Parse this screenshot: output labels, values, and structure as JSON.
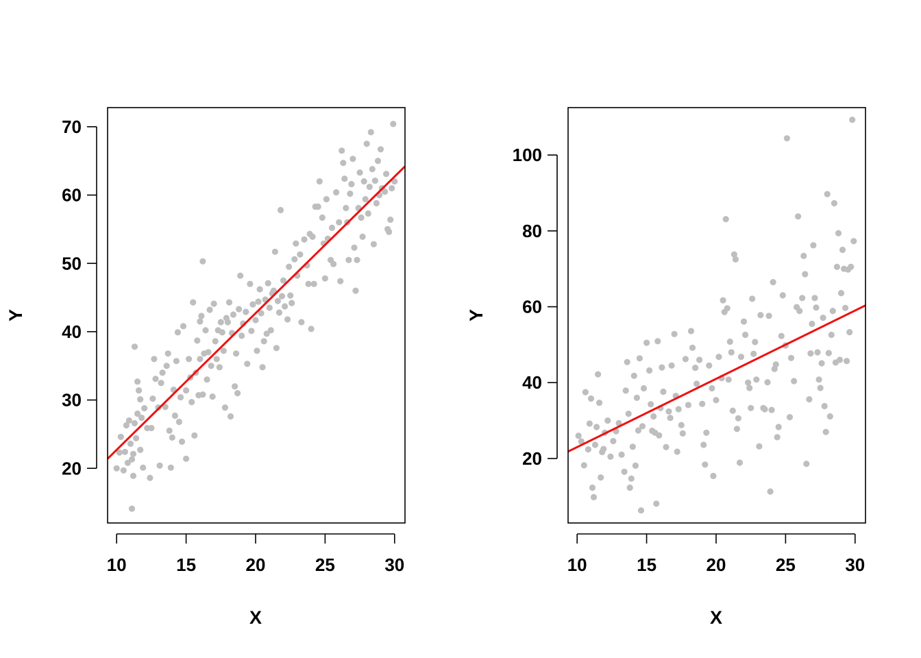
{
  "colors": {
    "points": "#BEBEBE",
    "fit_line": "#EE1111",
    "axis": "#000000",
    "background": "#FFFFFF"
  },
  "chart_data": [
    {
      "type": "scatter",
      "title": "",
      "xlabel": "X",
      "ylabel": "Y",
      "xlim": [
        9.35,
        30.75
      ],
      "ylim": [
        12.0,
        72.8
      ],
      "xticks": [
        10,
        15,
        20,
        25,
        30
      ],
      "yticks": [
        20,
        30,
        40,
        50,
        60,
        70
      ],
      "grid": false,
      "legend": "none",
      "points": [
        [
          10.0,
          20.0
        ],
        [
          10.2,
          22.3
        ],
        [
          10.3,
          24.6
        ],
        [
          10.5,
          19.7
        ],
        [
          10.6,
          22.4
        ],
        [
          10.7,
          26.3
        ],
        [
          10.8,
          20.8
        ],
        [
          10.9,
          27.0
        ],
        [
          11.0,
          23.6
        ],
        [
          11.1,
          21.3
        ],
        [
          11.2,
          18.9
        ],
        [
          11.2,
          22.1
        ],
        [
          11.3,
          26.6
        ],
        [
          11.4,
          24.4
        ],
        [
          11.5,
          28.0
        ],
        [
          11.6,
          31.4
        ],
        [
          11.7,
          30.1
        ],
        [
          11.8,
          27.4
        ],
        [
          11.3,
          37.8
        ],
        [
          11.5,
          32.7
        ],
        [
          11.1,
          14.1
        ],
        [
          11.7,
          22.7
        ],
        [
          11.9,
          20.1
        ],
        [
          12.0,
          28.8
        ],
        [
          12.2,
          25.9
        ],
        [
          12.4,
          18.6
        ],
        [
          12.5,
          25.9
        ],
        [
          12.6,
          30.2
        ],
        [
          12.7,
          36.0
        ],
        [
          12.8,
          33.1
        ],
        [
          13.0,
          28.9
        ],
        [
          13.1,
          20.4
        ],
        [
          13.2,
          32.5
        ],
        [
          13.3,
          34.0
        ],
        [
          13.5,
          29.0
        ],
        [
          13.6,
          35.0
        ],
        [
          13.7,
          36.8
        ],
        [
          13.8,
          25.5
        ],
        [
          13.9,
          20.1
        ],
        [
          14.0,
          24.5
        ],
        [
          14.1,
          31.5
        ],
        [
          14.2,
          27.7
        ],
        [
          14.3,
          35.7
        ],
        [
          14.4,
          39.9
        ],
        [
          14.5,
          26.8
        ],
        [
          14.6,
          30.4
        ],
        [
          14.7,
          23.9
        ],
        [
          14.8,
          40.8
        ],
        [
          15.0,
          31.4
        ],
        [
          15.0,
          21.4
        ],
        [
          15.2,
          36.0
        ],
        [
          15.3,
          33.3
        ],
        [
          15.4,
          29.7
        ],
        [
          15.5,
          44.3
        ],
        [
          15.6,
          24.8
        ],
        [
          15.7,
          34.0
        ],
        [
          15.8,
          38.7
        ],
        [
          15.9,
          30.7
        ],
        [
          16.0,
          36.0
        ],
        [
          16.0,
          41.5
        ],
        [
          16.1,
          42.3
        ],
        [
          16.2,
          30.8
        ],
        [
          16.2,
          50.3
        ],
        [
          16.3,
          36.8
        ],
        [
          16.4,
          40.2
        ],
        [
          16.5,
          33.0
        ],
        [
          16.6,
          37.0
        ],
        [
          16.7,
          43.2
        ],
        [
          16.8,
          35.0
        ],
        [
          16.9,
          30.5
        ],
        [
          17.0,
          44.1
        ],
        [
          17.1,
          38.6
        ],
        [
          17.2,
          36.0
        ],
        [
          17.3,
          40.2
        ],
        [
          17.4,
          34.8
        ],
        [
          17.5,
          41.4
        ],
        [
          17.6,
          39.9
        ],
        [
          17.7,
          37.2
        ],
        [
          17.8,
          28.9
        ],
        [
          17.9,
          42.0
        ],
        [
          18.0,
          41.4
        ],
        [
          18.1,
          44.3
        ],
        [
          18.2,
          27.6
        ],
        [
          18.3,
          39.8
        ],
        [
          18.4,
          42.5
        ],
        [
          18.5,
          32.0
        ],
        [
          18.6,
          36.8
        ],
        [
          18.7,
          31.0
        ],
        [
          18.8,
          43.3
        ],
        [
          18.9,
          48.2
        ],
        [
          19.0,
          39.4
        ],
        [
          19.1,
          41.2
        ],
        [
          19.3,
          42.9
        ],
        [
          19.4,
          35.3
        ],
        [
          19.6,
          47.0
        ],
        [
          19.7,
          40.1
        ],
        [
          19.8,
          44.0
        ],
        [
          20.0,
          41.7
        ],
        [
          20.1,
          37.2
        ],
        [
          20.2,
          44.4
        ],
        [
          20.3,
          46.2
        ],
        [
          20.4,
          42.7
        ],
        [
          20.5,
          34.8
        ],
        [
          20.6,
          38.6
        ],
        [
          20.7,
          44.7
        ],
        [
          20.8,
          39.7
        ],
        [
          20.9,
          47.1
        ],
        [
          21.0,
          43.5
        ],
        [
          21.1,
          40.2
        ],
        [
          21.2,
          45.6
        ],
        [
          21.3,
          46.0
        ],
        [
          21.4,
          51.7
        ],
        [
          21.5,
          37.6
        ],
        [
          21.6,
          44.5
        ],
        [
          21.7,
          42.8
        ],
        [
          21.8,
          57.8
        ],
        [
          21.9,
          45.2
        ],
        [
          22.0,
          47.5
        ],
        [
          22.1,
          43.7
        ],
        [
          22.3,
          41.8
        ],
        [
          22.4,
          49.5
        ],
        [
          22.5,
          45.3
        ],
        [
          22.6,
          44.2
        ],
        [
          22.8,
          50.6
        ],
        [
          22.9,
          52.9
        ],
        [
          23.0,
          48.2
        ],
        [
          23.2,
          51.3
        ],
        [
          23.3,
          41.4
        ],
        [
          23.5,
          53.5
        ],
        [
          23.7,
          49.7
        ],
        [
          23.8,
          47.0
        ],
        [
          23.9,
          54.3
        ],
        [
          24.0,
          40.4
        ],
        [
          24.1,
          53.9
        ],
        [
          24.2,
          47.0
        ],
        [
          24.3,
          58.3
        ],
        [
          24.5,
          58.3
        ],
        [
          24.6,
          62.0
        ],
        [
          24.8,
          56.7
        ],
        [
          24.9,
          52.9
        ],
        [
          25.0,
          47.8
        ],
        [
          25.1,
          59.4
        ],
        [
          25.2,
          53.6
        ],
        [
          25.4,
          50.5
        ],
        [
          25.5,
          55.2
        ],
        [
          25.6,
          49.9
        ],
        [
          25.8,
          60.4
        ],
        [
          26.0,
          56.0
        ],
        [
          26.1,
          47.4
        ],
        [
          26.2,
          66.5
        ],
        [
          26.3,
          64.7
        ],
        [
          26.4,
          62.4
        ],
        [
          26.5,
          58.1
        ],
        [
          26.6,
          56.0
        ],
        [
          26.7,
          50.5
        ],
        [
          26.8,
          60.2
        ],
        [
          26.9,
          61.6
        ],
        [
          27.0,
          65.3
        ],
        [
          27.1,
          52.3
        ],
        [
          27.2,
          46.0
        ],
        [
          27.3,
          50.5
        ],
        [
          27.4,
          58.1
        ],
        [
          27.5,
          63.3
        ],
        [
          27.6,
          56.7
        ],
        [
          27.7,
          53.9
        ],
        [
          27.8,
          62.0
        ],
        [
          27.9,
          59.4
        ],
        [
          28.0,
          67.5
        ],
        [
          28.1,
          57.3
        ],
        [
          28.2,
          61.2
        ],
        [
          28.3,
          69.2
        ],
        [
          28.4,
          63.8
        ],
        [
          28.5,
          52.8
        ],
        [
          28.6,
          62.1
        ],
        [
          28.7,
          58.8
        ],
        [
          28.8,
          65.0
        ],
        [
          28.9,
          60.0
        ],
        [
          29.0,
          66.7
        ],
        [
          29.1,
          61.0
        ],
        [
          29.3,
          60.5
        ],
        [
          29.4,
          63.1
        ],
        [
          29.5,
          55.0
        ],
        [
          29.6,
          54.6
        ],
        [
          29.7,
          56.4
        ],
        [
          29.8,
          61.0
        ],
        [
          29.9,
          70.4
        ],
        [
          30.0,
          62.0
        ]
      ],
      "fit_line": {
        "intercept": 2.7,
        "slope": 2.0
      }
    },
    {
      "type": "scatter",
      "title": "",
      "xlabel": "X",
      "ylabel": "Y",
      "xlim": [
        9.35,
        30.75
      ],
      "ylim": [
        3.0,
        112.5
      ],
      "xticks": [
        10,
        15,
        20,
        25,
        30
      ],
      "yticks": [
        20,
        40,
        60,
        80,
        100
      ],
      "grid": false,
      "legend": "none",
      "points": [
        [
          10.1,
          26.0
        ],
        [
          10.3,
          24.5
        ],
        [
          10.5,
          18.2
        ],
        [
          10.6,
          37.5
        ],
        [
          10.8,
          22.4
        ],
        [
          10.9,
          29.2
        ],
        [
          11.0,
          35.8
        ],
        [
          11.1,
          12.3
        ],
        [
          11.2,
          9.8
        ],
        [
          11.3,
          23.6
        ],
        [
          11.4,
          28.3
        ],
        [
          11.5,
          42.2
        ],
        [
          11.6,
          34.7
        ],
        [
          11.7,
          15.0
        ],
        [
          11.8,
          21.7
        ],
        [
          11.9,
          22.5
        ],
        [
          12.0,
          26.8
        ],
        [
          12.2,
          30.0
        ],
        [
          12.4,
          20.5
        ],
        [
          12.6,
          24.6
        ],
        [
          12.8,
          27.2
        ],
        [
          13.0,
          29.3
        ],
        [
          13.2,
          21.0
        ],
        [
          13.4,
          16.5
        ],
        [
          13.5,
          37.9
        ],
        [
          13.6,
          45.4
        ],
        [
          13.7,
          31.8
        ],
        [
          13.8,
          12.3
        ],
        [
          13.9,
          14.7
        ],
        [
          14.0,
          23.1
        ],
        [
          14.1,
          41.8
        ],
        [
          14.2,
          18.1
        ],
        [
          14.3,
          36.0
        ],
        [
          14.4,
          27.4
        ],
        [
          14.5,
          46.4
        ],
        [
          14.6,
          6.3
        ],
        [
          14.7,
          28.5
        ],
        [
          14.8,
          38.5
        ],
        [
          15.0,
          50.5
        ],
        [
          15.2,
          43.2
        ],
        [
          15.3,
          34.3
        ],
        [
          15.4,
          27.3
        ],
        [
          15.5,
          31.1
        ],
        [
          15.6,
          26.8
        ],
        [
          15.7,
          8.1
        ],
        [
          15.8,
          50.9
        ],
        [
          15.9,
          26.1
        ],
        [
          16.0,
          33.3
        ],
        [
          16.1,
          44.0
        ],
        [
          16.2,
          37.6
        ],
        [
          16.4,
          23.0
        ],
        [
          16.6,
          32.4
        ],
        [
          16.7,
          30.7
        ],
        [
          16.8,
          44.5
        ],
        [
          17.0,
          52.8
        ],
        [
          17.1,
          36.5
        ],
        [
          17.2,
          21.8
        ],
        [
          17.3,
          33.0
        ],
        [
          17.5,
          28.8
        ],
        [
          17.6,
          26.6
        ],
        [
          17.8,
          46.2
        ],
        [
          18.0,
          34.1
        ],
        [
          18.2,
          53.6
        ],
        [
          18.3,
          49.2
        ],
        [
          18.5,
          43.9
        ],
        [
          18.6,
          39.7
        ],
        [
          18.8,
          46.0
        ],
        [
          19.0,
          34.4
        ],
        [
          19.1,
          23.6
        ],
        [
          19.2,
          18.4
        ],
        [
          19.3,
          26.8
        ],
        [
          19.5,
          44.5
        ],
        [
          19.7,
          38.5
        ],
        [
          19.8,
          15.4
        ],
        [
          20.0,
          35.4
        ],
        [
          20.2,
          46.8
        ],
        [
          20.4,
          41.2
        ],
        [
          20.5,
          61.7
        ],
        [
          20.6,
          58.6
        ],
        [
          20.7,
          83.1
        ],
        [
          20.8,
          59.6
        ],
        [
          20.9,
          40.8
        ],
        [
          21.0,
          50.8
        ],
        [
          21.1,
          48.0
        ],
        [
          21.2,
          32.6
        ],
        [
          21.3,
          73.8
        ],
        [
          21.4,
          72.5
        ],
        [
          21.5,
          27.8
        ],
        [
          21.6,
          30.6
        ],
        [
          21.7,
          18.9
        ],
        [
          21.8,
          46.8
        ],
        [
          22.0,
          56.1
        ],
        [
          22.1,
          52.6
        ],
        [
          22.3,
          40.0
        ],
        [
          22.4,
          38.6
        ],
        [
          22.5,
          33.3
        ],
        [
          22.6,
          62.1
        ],
        [
          22.7,
          47.6
        ],
        [
          22.8,
          50.7
        ],
        [
          22.9,
          40.8
        ],
        [
          23.1,
          23.2
        ],
        [
          23.2,
          57.8
        ],
        [
          23.4,
          33.3
        ],
        [
          23.5,
          33.0
        ],
        [
          23.7,
          40.1
        ],
        [
          23.8,
          57.6
        ],
        [
          23.9,
          11.3
        ],
        [
          24.0,
          32.8
        ],
        [
          24.1,
          66.5
        ],
        [
          24.2,
          43.6
        ],
        [
          24.3,
          44.8
        ],
        [
          24.4,
          25.6
        ],
        [
          24.5,
          28.3
        ],
        [
          24.7,
          52.3
        ],
        [
          24.8,
          63.0
        ],
        [
          25.0,
          49.8
        ],
        [
          25.1,
          104.4
        ],
        [
          25.3,
          30.9
        ],
        [
          25.4,
          46.5
        ],
        [
          25.6,
          40.4
        ],
        [
          25.8,
          59.9
        ],
        [
          25.9,
          83.8
        ],
        [
          26.0,
          58.9
        ],
        [
          26.2,
          62.3
        ],
        [
          26.3,
          73.4
        ],
        [
          26.4,
          68.6
        ],
        [
          26.5,
          18.6
        ],
        [
          26.7,
          35.6
        ],
        [
          26.8,
          47.7
        ],
        [
          26.9,
          55.5
        ],
        [
          27.0,
          76.2
        ],
        [
          27.1,
          62.3
        ],
        [
          27.2,
          59.8
        ],
        [
          27.3,
          48.0
        ],
        [
          27.4,
          40.8
        ],
        [
          27.5,
          38.6
        ],
        [
          27.6,
          45.1
        ],
        [
          27.7,
          57.1
        ],
        [
          27.8,
          33.8
        ],
        [
          27.9,
          27.0
        ],
        [
          28.0,
          89.7
        ],
        [
          28.1,
          47.8
        ],
        [
          28.2,
          31.1
        ],
        [
          28.3,
          52.6
        ],
        [
          28.4,
          58.9
        ],
        [
          28.5,
          87.3
        ],
        [
          28.6,
          45.3
        ],
        [
          28.7,
          70.5
        ],
        [
          28.8,
          79.4
        ],
        [
          28.9,
          46.0
        ],
        [
          29.0,
          63.6
        ],
        [
          29.1,
          75.0
        ],
        [
          29.2,
          70.0
        ],
        [
          29.3,
          59.7
        ],
        [
          29.4,
          45.7
        ],
        [
          29.5,
          69.8
        ],
        [
          29.6,
          53.3
        ],
        [
          29.7,
          70.5
        ],
        [
          29.8,
          109.3
        ],
        [
          29.9,
          77.3
        ]
      ],
      "fit_line": {
        "intercept": 5.0,
        "slope": 1.8
      }
    }
  ]
}
